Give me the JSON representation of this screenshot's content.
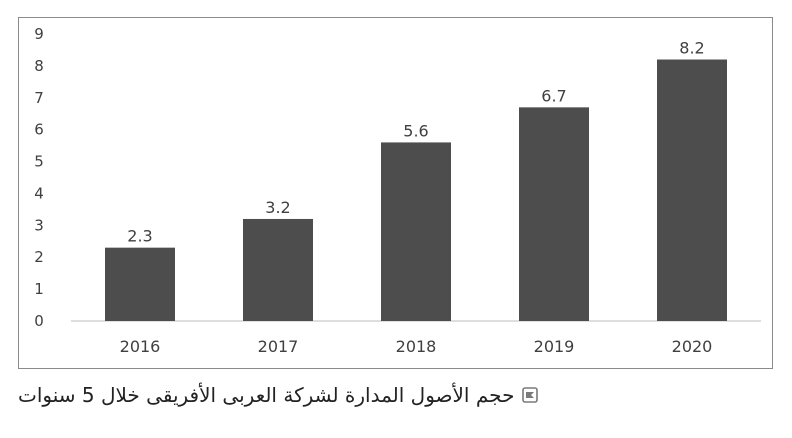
{
  "chart_data": {
    "type": "bar",
    "categories": [
      "2016",
      "2017",
      "2018",
      "2019",
      "2020"
    ],
    "values": [
      2.3,
      3.2,
      5.6,
      6.7,
      8.2
    ],
    "data_labels": [
      "2.3",
      "3.2",
      "5.6",
      "6.7",
      "8.2"
    ],
    "y_ticks": [
      "0",
      "1",
      "2",
      "3",
      "4",
      "5",
      "6",
      "7",
      "8",
      "9"
    ],
    "ylim": [
      0,
      9
    ],
    "grid": false,
    "bar_color": "#4d4d4d",
    "axis_color": "#bfbfbf",
    "label_color": "#404040"
  },
  "caption": {
    "text": "حجم الأصول المدارة لشركة العربى الأفريقى خلال 5 سنوات",
    "icon": "chart-bullet-icon",
    "icon_color": "#6b6b6b"
  }
}
